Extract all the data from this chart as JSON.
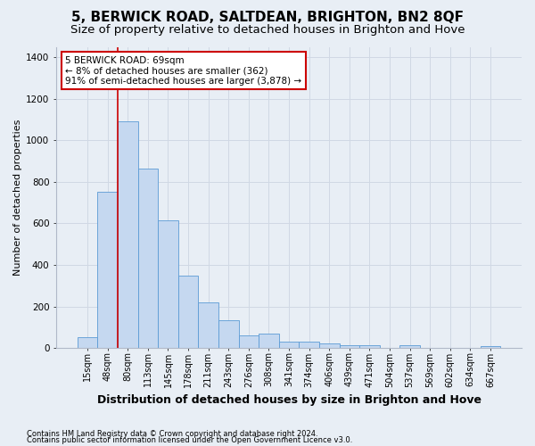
{
  "title": "5, BERWICK ROAD, SALTDEAN, BRIGHTON, BN2 8QF",
  "subtitle": "Size of property relative to detached houses in Brighton and Hove",
  "xlabel": "Distribution of detached houses by size in Brighton and Hove",
  "ylabel": "Number of detached properties",
  "footer_line1": "Contains HM Land Registry data © Crown copyright and database right 2024.",
  "footer_line2": "Contains public sector information licensed under the Open Government Licence v3.0.",
  "categories": [
    "15sqm",
    "48sqm",
    "80sqm",
    "113sqm",
    "145sqm",
    "178sqm",
    "211sqm",
    "243sqm",
    "276sqm",
    "308sqm",
    "341sqm",
    "374sqm",
    "406sqm",
    "439sqm",
    "471sqm",
    "504sqm",
    "537sqm",
    "569sqm",
    "602sqm",
    "634sqm",
    "667sqm"
  ],
  "values": [
    50,
    750,
    1090,
    865,
    615,
    350,
    220,
    135,
    60,
    70,
    30,
    30,
    20,
    15,
    15,
    0,
    12,
    0,
    0,
    0,
    10
  ],
  "bar_color": "#c5d8f0",
  "bar_edge_color": "#5b9bd5",
  "property_line_x": 1.5,
  "annotation_text_line1": "5 BERWICK ROAD: 69sqm",
  "annotation_text_line2": "← 8% of detached houses are smaller (362)",
  "annotation_text_line3": "91% of semi-detached houses are larger (3,878) →",
  "annotation_box_color": "#ffffff",
  "annotation_box_edge_color": "#cc0000",
  "vline_color": "#cc0000",
  "ylim": [
    0,
    1450
  ],
  "yticks": [
    0,
    200,
    400,
    600,
    800,
    1000,
    1200,
    1400
  ],
  "grid_color": "#d0d8e4",
  "bg_color": "#e8eef5",
  "title_fontsize": 11,
  "subtitle_fontsize": 9.5,
  "xlabel_fontsize": 9,
  "ylabel_fontsize": 8,
  "tick_fontsize": 7,
  "footer_fontsize": 6,
  "annotation_fontsize": 7.5
}
